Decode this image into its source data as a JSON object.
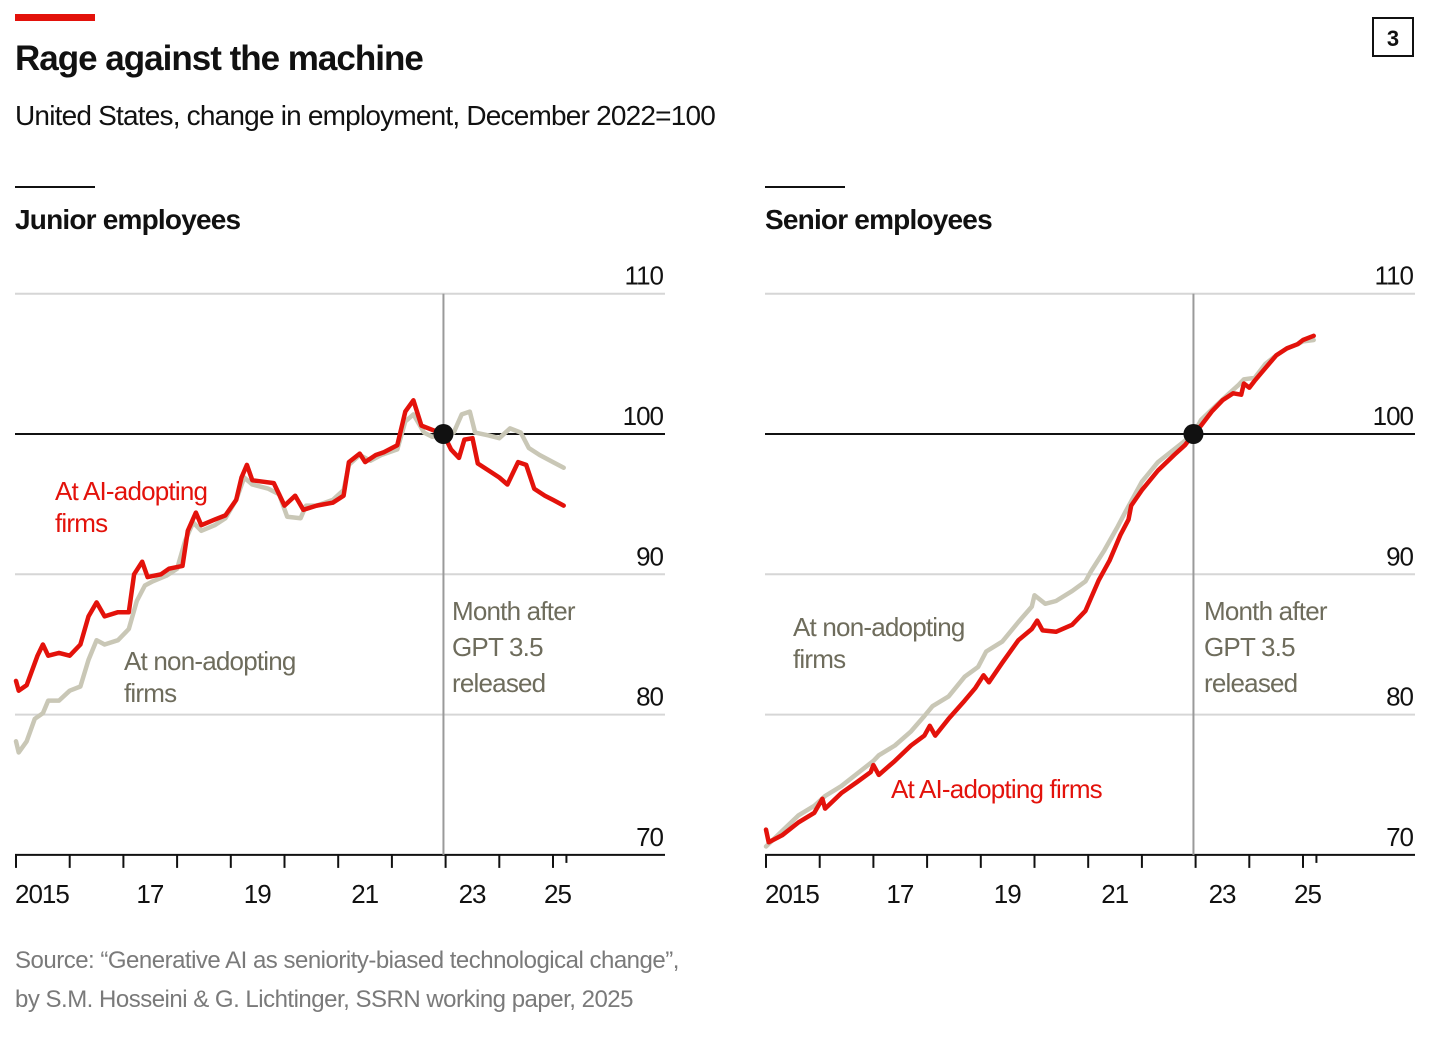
{
  "header": {
    "title": "Rage against the machine",
    "subtitle": "United States, change in employment, December 2022=100",
    "chart_number": "3"
  },
  "source": {
    "line1": "Source: “Generative AI as seniority-biased technological change”,",
    "line2": "by S.M. Hosseini & G. Lichtinger, SSRN working paper, 2025"
  },
  "colors": {
    "ai_adopting": "#e3120b",
    "non_adopting": "#c9c7b6",
    "annotation_gray": "#6e6c5c",
    "accent_bar": "#e3120b"
  },
  "chart_data": [
    {
      "type": "line",
      "title": "Junior employees",
      "ylim": [
        70,
        110
      ],
      "yticks": [
        "110",
        "100",
        "90",
        "80",
        "70"
      ],
      "xlim": [
        2015,
        2027
      ],
      "xtick_labels": [
        "2015",
        "17",
        "19",
        "21",
        "23",
        "25"
      ],
      "reference_x": 2022.96,
      "reference_label": [
        "Month after",
        "GPT 3.5",
        "released"
      ],
      "series": [
        {
          "name": "At AI-adopting firms",
          "label_lines": [
            "At AI-adopting",
            "firms"
          ],
          "x": [
            2015.0,
            2015.05,
            2015.2,
            2015.4,
            2015.5,
            2015.6,
            2015.8,
            2016.0,
            2016.2,
            2016.35,
            2016.5,
            2016.65,
            2016.9,
            2017.1,
            2017.2,
            2017.35,
            2017.45,
            2017.7,
            2017.85,
            2018.1,
            2018.2,
            2018.35,
            2018.45,
            2018.7,
            2018.9,
            2019.1,
            2019.2,
            2019.3,
            2019.4,
            2019.6,
            2019.8,
            2020.0,
            2020.2,
            2020.35,
            2020.6,
            2020.9,
            2021.1,
            2021.2,
            2021.4,
            2021.5,
            2021.7,
            2021.85,
            2022.1,
            2022.25,
            2022.4,
            2022.55,
            2022.75,
            2022.96,
            2023.1,
            2023.25,
            2023.35,
            2023.5,
            2023.6,
            2023.8,
            2024.0,
            2024.15,
            2024.35,
            2024.5,
            2024.65,
            2024.85,
            2025.0,
            2025.2
          ],
          "y": [
            82.4,
            81.7,
            82.1,
            84.2,
            85.0,
            84.2,
            84.4,
            84.2,
            85.0,
            87.0,
            88.0,
            87.0,
            87.3,
            87.3,
            90.0,
            90.9,
            89.8,
            90.0,
            90.4,
            90.6,
            93.1,
            94.4,
            93.5,
            93.9,
            94.2,
            95.3,
            96.9,
            97.8,
            96.7,
            96.6,
            96.5,
            94.9,
            95.6,
            94.6,
            94.9,
            95.1,
            95.6,
            98.0,
            98.6,
            98.0,
            98.5,
            98.7,
            99.2,
            101.6,
            102.4,
            100.6,
            100.3,
            100.0,
            98.9,
            98.3,
            99.6,
            99.7,
            97.9,
            97.4,
            96.9,
            96.4,
            98.0,
            97.8,
            96.1,
            95.6,
            95.3,
            94.9
          ]
        },
        {
          "name": "At non-adopting firms",
          "label_lines": [
            "At non-adopting",
            "firms"
          ],
          "x": [
            2015.0,
            2015.05,
            2015.2,
            2015.35,
            2015.5,
            2015.6,
            2015.8,
            2016.0,
            2016.2,
            2016.35,
            2016.5,
            2016.65,
            2016.9,
            2017.1,
            2017.25,
            2017.4,
            2017.55,
            2017.8,
            2018.0,
            2018.15,
            2018.3,
            2018.45,
            2018.7,
            2018.9,
            2019.1,
            2019.25,
            2019.4,
            2019.7,
            2019.9,
            2020.05,
            2020.3,
            2020.4,
            2020.6,
            2020.9,
            2021.1,
            2021.2,
            2021.4,
            2021.6,
            2021.8,
            2022.1,
            2022.25,
            2022.4,
            2022.6,
            2022.75,
            2022.96,
            2023.15,
            2023.3,
            2023.45,
            2023.55,
            2023.8,
            2024.0,
            2024.2,
            2024.4,
            2024.55,
            2024.75,
            2025.0,
            2025.2
          ],
          "y": [
            78.1,
            77.3,
            78.1,
            79.7,
            80.1,
            81.0,
            81.0,
            81.7,
            82.0,
            83.9,
            85.3,
            85.0,
            85.3,
            86.1,
            88.1,
            89.2,
            89.5,
            89.9,
            90.4,
            92.4,
            93.7,
            93.1,
            93.5,
            94.0,
            95.3,
            96.9,
            96.4,
            96.1,
            95.7,
            94.1,
            94.0,
            94.9,
            94.9,
            95.3,
            96.0,
            97.8,
            98.5,
            98.1,
            98.5,
            98.9,
            100.9,
            101.4,
            100.1,
            99.8,
            100.0,
            100.1,
            101.4,
            101.6,
            100.1,
            99.9,
            99.7,
            100.4,
            100.1,
            99.0,
            98.5,
            98.0,
            97.6
          ]
        }
      ]
    },
    {
      "type": "line",
      "title": "Senior employees",
      "ylim": [
        70,
        110
      ],
      "yticks": [
        "110",
        "100",
        "90",
        "80",
        "70"
      ],
      "xlim": [
        2015,
        2027
      ],
      "xtick_labels": [
        "2015",
        "17",
        "19",
        "21",
        "23",
        "25"
      ],
      "reference_x": 2022.96,
      "reference_label": [
        "Month after",
        "GPT 3.5",
        "released"
      ],
      "series": [
        {
          "name": "At AI-adopting firms",
          "label_lines": [
            "At AI-adopting firms"
          ],
          "x": [
            2015.0,
            2015.05,
            2015.3,
            2015.6,
            2015.9,
            2016.05,
            2016.1,
            2016.4,
            2016.7,
            2016.95,
            2017.0,
            2017.1,
            2017.4,
            2017.7,
            2017.95,
            2018.05,
            2018.15,
            2018.4,
            2018.7,
            2018.9,
            2019.05,
            2019.15,
            2019.4,
            2019.7,
            2019.95,
            2020.05,
            2020.15,
            2020.4,
            2020.7,
            2020.95,
            2021.05,
            2021.2,
            2021.4,
            2021.6,
            2021.75,
            2021.8,
            2022.0,
            2022.3,
            2022.6,
            2022.8,
            2022.96,
            2023.1,
            2023.3,
            2023.5,
            2023.7,
            2023.85,
            2023.9,
            2024.0,
            2024.1,
            2024.3,
            2024.5,
            2024.7,
            2024.9,
            2025.0,
            2025.2
          ],
          "y": [
            71.8,
            70.9,
            71.4,
            72.3,
            73.0,
            74.0,
            73.3,
            74.4,
            75.2,
            75.9,
            76.4,
            75.7,
            76.7,
            77.8,
            78.5,
            79.2,
            78.5,
            79.7,
            81.0,
            81.9,
            82.8,
            82.3,
            83.7,
            85.3,
            86.1,
            86.7,
            86.0,
            85.9,
            86.4,
            87.4,
            88.3,
            89.6,
            91.0,
            92.8,
            93.9,
            94.9,
            96.0,
            97.4,
            98.5,
            99.2,
            100.0,
            100.6,
            101.6,
            102.4,
            102.9,
            102.8,
            103.6,
            103.3,
            103.8,
            104.7,
            105.6,
            106.1,
            106.4,
            106.7,
            107.0
          ]
        },
        {
          "name": "At non-adopting firms",
          "label_lines": [
            "At non-adopting",
            "firms"
          ],
          "x": [
            2015.0,
            2015.3,
            2015.6,
            2015.9,
            2016.1,
            2016.4,
            2016.7,
            2017.0,
            2017.1,
            2017.4,
            2017.7,
            2017.95,
            2018.1,
            2018.4,
            2018.7,
            2018.95,
            2019.1,
            2019.4,
            2019.7,
            2019.95,
            2020.0,
            2020.2,
            2020.4,
            2020.7,
            2020.95,
            2021.05,
            2021.3,
            2021.55,
            2021.7,
            2021.8,
            2022.0,
            2022.3,
            2022.6,
            2022.96,
            2023.1,
            2023.4,
            2023.6,
            2023.8,
            2023.9,
            2024.1,
            2024.3,
            2024.5,
            2024.7,
            2024.9,
            2025.0,
            2025.2
          ],
          "y": [
            70.6,
            71.7,
            72.8,
            73.5,
            74.2,
            74.9,
            75.8,
            76.7,
            77.1,
            77.8,
            78.8,
            79.9,
            80.6,
            81.3,
            82.7,
            83.4,
            84.5,
            85.2,
            86.6,
            87.7,
            88.5,
            87.9,
            88.1,
            88.8,
            89.5,
            90.2,
            91.7,
            93.4,
            94.5,
            95.2,
            96.6,
            98.0,
            98.9,
            100.0,
            101.0,
            102.1,
            102.8,
            103.5,
            103.9,
            104.0,
            105.0,
            105.6,
            106.1,
            106.4,
            106.6,
            106.7
          ]
        }
      ]
    }
  ]
}
